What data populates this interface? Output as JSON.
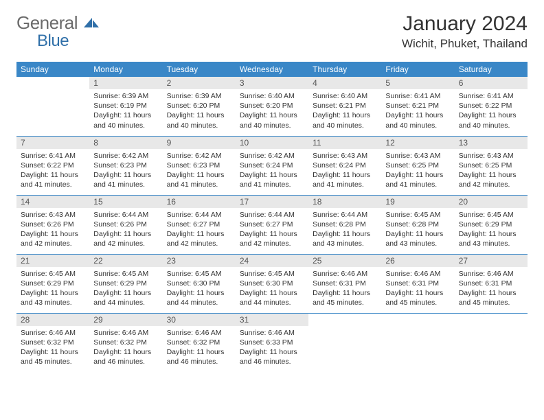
{
  "logo": {
    "text_gray": "General",
    "text_blue": "Blue"
  },
  "title": "January 2024",
  "location": "Wichit, Phuket, Thailand",
  "colors": {
    "header_bg": "#3a87c7",
    "header_text": "#ffffff",
    "daynum_bg": "#e8e8e8",
    "daynum_text": "#555555",
    "body_text": "#333333",
    "rule": "#3a87c7",
    "logo_gray": "#6b6b6b",
    "logo_blue": "#2f6fa8"
  },
  "day_headers": [
    "Sunday",
    "Monday",
    "Tuesday",
    "Wednesday",
    "Thursday",
    "Friday",
    "Saturday"
  ],
  "weeks": [
    [
      null,
      {
        "n": "1",
        "sr": "6:39 AM",
        "ss": "6:19 PM",
        "dl": "11 hours and 40 minutes."
      },
      {
        "n": "2",
        "sr": "6:39 AM",
        "ss": "6:20 PM",
        "dl": "11 hours and 40 minutes."
      },
      {
        "n": "3",
        "sr": "6:40 AM",
        "ss": "6:20 PM",
        "dl": "11 hours and 40 minutes."
      },
      {
        "n": "4",
        "sr": "6:40 AM",
        "ss": "6:21 PM",
        "dl": "11 hours and 40 minutes."
      },
      {
        "n": "5",
        "sr": "6:41 AM",
        "ss": "6:21 PM",
        "dl": "11 hours and 40 minutes."
      },
      {
        "n": "6",
        "sr": "6:41 AM",
        "ss": "6:22 PM",
        "dl": "11 hours and 40 minutes."
      }
    ],
    [
      {
        "n": "7",
        "sr": "6:41 AM",
        "ss": "6:22 PM",
        "dl": "11 hours and 41 minutes."
      },
      {
        "n": "8",
        "sr": "6:42 AM",
        "ss": "6:23 PM",
        "dl": "11 hours and 41 minutes."
      },
      {
        "n": "9",
        "sr": "6:42 AM",
        "ss": "6:23 PM",
        "dl": "11 hours and 41 minutes."
      },
      {
        "n": "10",
        "sr": "6:42 AM",
        "ss": "6:24 PM",
        "dl": "11 hours and 41 minutes."
      },
      {
        "n": "11",
        "sr": "6:43 AM",
        "ss": "6:24 PM",
        "dl": "11 hours and 41 minutes."
      },
      {
        "n": "12",
        "sr": "6:43 AM",
        "ss": "6:25 PM",
        "dl": "11 hours and 41 minutes."
      },
      {
        "n": "13",
        "sr": "6:43 AM",
        "ss": "6:25 PM",
        "dl": "11 hours and 42 minutes."
      }
    ],
    [
      {
        "n": "14",
        "sr": "6:43 AM",
        "ss": "6:26 PM",
        "dl": "11 hours and 42 minutes."
      },
      {
        "n": "15",
        "sr": "6:44 AM",
        "ss": "6:26 PM",
        "dl": "11 hours and 42 minutes."
      },
      {
        "n": "16",
        "sr": "6:44 AM",
        "ss": "6:27 PM",
        "dl": "11 hours and 42 minutes."
      },
      {
        "n": "17",
        "sr": "6:44 AM",
        "ss": "6:27 PM",
        "dl": "11 hours and 42 minutes."
      },
      {
        "n": "18",
        "sr": "6:44 AM",
        "ss": "6:28 PM",
        "dl": "11 hours and 43 minutes."
      },
      {
        "n": "19",
        "sr": "6:45 AM",
        "ss": "6:28 PM",
        "dl": "11 hours and 43 minutes."
      },
      {
        "n": "20",
        "sr": "6:45 AM",
        "ss": "6:29 PM",
        "dl": "11 hours and 43 minutes."
      }
    ],
    [
      {
        "n": "21",
        "sr": "6:45 AM",
        "ss": "6:29 PM",
        "dl": "11 hours and 43 minutes."
      },
      {
        "n": "22",
        "sr": "6:45 AM",
        "ss": "6:29 PM",
        "dl": "11 hours and 44 minutes."
      },
      {
        "n": "23",
        "sr": "6:45 AM",
        "ss": "6:30 PM",
        "dl": "11 hours and 44 minutes."
      },
      {
        "n": "24",
        "sr": "6:45 AM",
        "ss": "6:30 PM",
        "dl": "11 hours and 44 minutes."
      },
      {
        "n": "25",
        "sr": "6:46 AM",
        "ss": "6:31 PM",
        "dl": "11 hours and 45 minutes."
      },
      {
        "n": "26",
        "sr": "6:46 AM",
        "ss": "6:31 PM",
        "dl": "11 hours and 45 minutes."
      },
      {
        "n": "27",
        "sr": "6:46 AM",
        "ss": "6:31 PM",
        "dl": "11 hours and 45 minutes."
      }
    ],
    [
      {
        "n": "28",
        "sr": "6:46 AM",
        "ss": "6:32 PM",
        "dl": "11 hours and 45 minutes."
      },
      {
        "n": "29",
        "sr": "6:46 AM",
        "ss": "6:32 PM",
        "dl": "11 hours and 46 minutes."
      },
      {
        "n": "30",
        "sr": "6:46 AM",
        "ss": "6:32 PM",
        "dl": "11 hours and 46 minutes."
      },
      {
        "n": "31",
        "sr": "6:46 AM",
        "ss": "6:33 PM",
        "dl": "11 hours and 46 minutes."
      },
      null,
      null,
      null
    ]
  ],
  "labels": {
    "sunrise": "Sunrise:",
    "sunset": "Sunset:",
    "daylight": "Daylight:"
  }
}
